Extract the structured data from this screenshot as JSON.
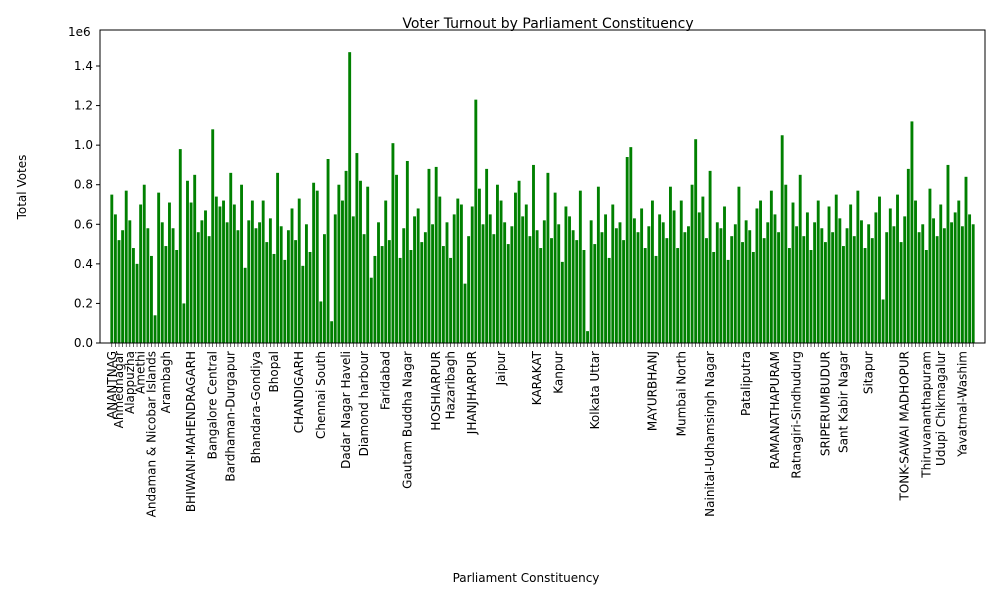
{
  "chart_data": {
    "type": "bar",
    "title": "Voter Turnout by Parliament Constituency",
    "x_label": "Parliament Constituency",
    "y_label": "Total Votes",
    "y_offset_label": "1e6",
    "color": "#008000",
    "ylim": [
      0,
      1582000
    ],
    "yticks": [
      {
        "value": 0,
        "label": "0.0"
      },
      {
        "value": 200000,
        "label": "0.2"
      },
      {
        "value": 400000,
        "label": "0.4"
      },
      {
        "value": 600000,
        "label": "0.6"
      },
      {
        "value": 800000,
        "label": "0.8"
      },
      {
        "value": 1000000,
        "label": "1.0"
      },
      {
        "value": 1200000,
        "label": "1.2"
      },
      {
        "value": 1400000,
        "label": "1.4"
      }
    ],
    "categories": [
      "ANANTNAG",
      null,
      "Ahmednagar",
      null,
      null,
      "Alappuzha",
      null,
      null,
      "Amethi",
      null,
      null,
      "Andaman & Nicobar Islands",
      null,
      null,
      null,
      "Arambagh",
      null,
      null,
      null,
      null,
      null,
      null,
      "BHIWANI-MAHENDRAGARH",
      null,
      null,
      null,
      null,
      null,
      "Bangalore Central",
      null,
      null,
      null,
      null,
      "Bardhaman-Durgapur",
      null,
      null,
      null,
      null,
      null,
      null,
      "Bhandara-Gondiya",
      null,
      null,
      null,
      null,
      "Bhopal",
      null,
      null,
      null,
      null,
      null,
      null,
      "CHANDIGARH",
      null,
      null,
      null,
      null,
      null,
      "Chennai South",
      null,
      null,
      null,
      null,
      null,
      null,
      "Dadar Nagar Haveli",
      null,
      null,
      null,
      null,
      "Diamond harbour",
      null,
      null,
      null,
      null,
      null,
      "Faridabad",
      null,
      null,
      null,
      null,
      null,
      "Gautam Buddha Nagar",
      null,
      null,
      null,
      null,
      null,
      null,
      null,
      "HOSHIARPUR",
      null,
      null,
      null,
      "Hazaribagh",
      null,
      null,
      null,
      null,
      null,
      "JHANJHARPUR",
      null,
      null,
      null,
      null,
      null,
      null,
      null,
      "Jaipur",
      null,
      null,
      null,
      null,
      null,
      null,
      null,
      null,
      null,
      "KARAKAT",
      null,
      null,
      null,
      null,
      null,
      "Kanpur",
      null,
      null,
      null,
      null,
      null,
      null,
      null,
      null,
      null,
      "Kolkata Uttar",
      null,
      null,
      null,
      null,
      null,
      null,
      null,
      null,
      null,
      null,
      null,
      null,
      null,
      null,
      null,
      "MAYURBHANJ",
      null,
      null,
      null,
      null,
      null,
      null,
      null,
      "Mumbai North",
      null,
      null,
      null,
      null,
      null,
      null,
      null,
      "Nainital-Udhamsingh Nagar",
      null,
      null,
      null,
      null,
      null,
      null,
      null,
      null,
      null,
      "Pataliputra",
      null,
      null,
      null,
      null,
      null,
      null,
      null,
      "RAMANATHAPURAM",
      null,
      null,
      null,
      null,
      null,
      "Ratnagiri-Sindhudurg",
      null,
      null,
      null,
      null,
      null,
      null,
      null,
      "SRIPERUMBUDUR",
      null,
      null,
      null,
      null,
      "Sant Kabir Nagar",
      null,
      null,
      null,
      null,
      null,
      null,
      "Sitapur",
      null,
      null,
      null,
      null,
      null,
      null,
      null,
      null,
      null,
      "TONK-SAWAI MADHOPUR",
      null,
      null,
      null,
      null,
      null,
      "Thiruvananthapuram",
      null,
      null,
      null,
      "Udupi Chikmagalur",
      null,
      null,
      null,
      null,
      null,
      "Yavatmal-Washim",
      null,
      null,
      null
    ],
    "values": [
      750000,
      650000,
      520000,
      570000,
      770000,
      620000,
      480000,
      400000,
      700000,
      800000,
      580000,
      440000,
      140000,
      760000,
      610000,
      490000,
      710000,
      580000,
      470000,
      980000,
      200000,
      820000,
      710000,
      850000,
      560000,
      620000,
      670000,
      540000,
      1080000,
      740000,
      690000,
      720000,
      610000,
      860000,
      700000,
      570000,
      800000,
      380000,
      620000,
      720000,
      580000,
      610000,
      720000,
      510000,
      630000,
      450000,
      860000,
      590000,
      420000,
      570000,
      680000,
      520000,
      730000,
      390000,
      600000,
      460000,
      810000,
      770000,
      210000,
      550000,
      930000,
      110000,
      650000,
      800000,
      720000,
      870000,
      1470000,
      640000,
      960000,
      820000,
      550000,
      790000,
      330000,
      440000,
      610000,
      490000,
      720000,
      520000,
      1010000,
      850000,
      430000,
      580000,
      920000,
      470000,
      640000,
      680000,
      510000,
      560000,
      880000,
      600000,
      890000,
      740000,
      490000,
      610000,
      430000,
      650000,
      730000,
      700000,
      300000,
      540000,
      690000,
      1230000,
      780000,
      600000,
      880000,
      650000,
      550000,
      800000,
      720000,
      610000,
      500000,
      590000,
      760000,
      820000,
      640000,
      700000,
      540000,
      900000,
      570000,
      480000,
      620000,
      860000,
      530000,
      760000,
      600000,
      410000,
      690000,
      640000,
      570000,
      520000,
      770000,
      470000,
      60000,
      620000,
      500000,
      790000,
      560000,
      650000,
      430000,
      700000,
      580000,
      610000,
      520000,
      940000,
      990000,
      630000,
      560000,
      680000,
      480000,
      590000,
      720000,
      440000,
      650000,
      610000,
      530000,
      790000,
      670000,
      480000,
      720000,
      560000,
      590000,
      800000,
      1030000,
      660000,
      740000,
      530000,
      870000,
      460000,
      610000,
      580000,
      690000,
      420000,
      540000,
      600000,
      790000,
      510000,
      620000,
      570000,
      460000,
      680000,
      720000,
      530000,
      610000,
      770000,
      650000,
      560000,
      1050000,
      800000,
      480000,
      710000,
      590000,
      850000,
      540000,
      660000,
      470000,
      610000,
      720000,
      580000,
      510000,
      690000,
      560000,
      750000,
      630000,
      490000,
      580000,
      700000,
      540000,
      770000,
      620000,
      480000,
      600000,
      530000,
      660000,
      740000,
      220000,
      560000,
      680000,
      590000,
      750000,
      510000,
      640000,
      880000,
      1120000,
      720000,
      560000,
      600000,
      470000,
      780000,
      630000,
      540000,
      700000,
      580000,
      900000,
      610000,
      660000,
      720000,
      590000,
      840000,
      650000,
      600000
    ]
  }
}
